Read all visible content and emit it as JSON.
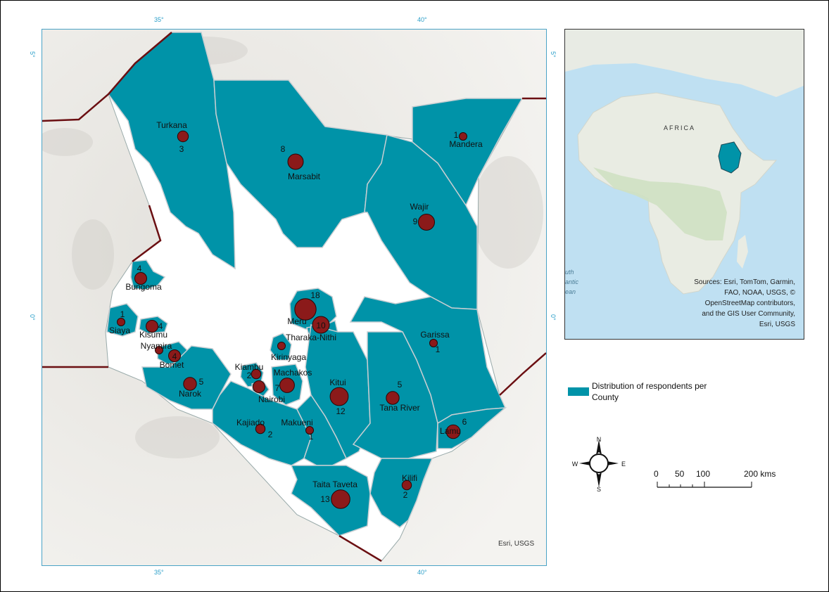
{
  "axis_ticks": {
    "top": [
      "35°",
      "40°"
    ],
    "bottom": [
      "35°",
      "40°"
    ],
    "left": [
      "5°",
      "0°"
    ],
    "right": [
      "5°",
      "0°"
    ]
  },
  "map_credit": "Esri, USGS",
  "colors": {
    "county_fill": "#0093a8",
    "border": "#6b0f12",
    "marker": "#8b1a1a"
  },
  "counties": [
    {
      "name": "Turkana",
      "count": "3",
      "value": 3
    },
    {
      "name": "Marsabit",
      "count": "8",
      "value": 8
    },
    {
      "name": "Mandera",
      "count": "1",
      "value": 1
    },
    {
      "name": "Wajir",
      "count": "9",
      "value": 9
    },
    {
      "name": "Bungoma",
      "count": "4",
      "value": 4
    },
    {
      "name": "Siaya",
      "count": "1",
      "value": 1
    },
    {
      "name": "Kisumu",
      "count": "4",
      "value": 4
    },
    {
      "name": "Nyamira",
      "count": "",
      "value": 1
    },
    {
      "name": "Bomet",
      "count": "4",
      "value": 4
    },
    {
      "name": "Meru",
      "count": "18",
      "value": 18
    },
    {
      "name": "Tharaka-Nithi",
      "count": "10",
      "value": 10
    },
    {
      "name": "Kirinyaga",
      "count": "",
      "value": 1
    },
    {
      "name": "Garissa",
      "count": "1",
      "value": 1
    },
    {
      "name": "Kiambu",
      "count": "2",
      "value": 2
    },
    {
      "name": "Machakos",
      "count": "7",
      "value": 7
    },
    {
      "name": "Nairobi",
      "count": "",
      "value": 4
    },
    {
      "name": "Narok",
      "count": "5",
      "value": 5
    },
    {
      "name": "Kitui",
      "count": "12",
      "value": 12
    },
    {
      "name": "Tana River",
      "count": "5",
      "value": 5
    },
    {
      "name": "Kajiado",
      "count": "2",
      "value": 2
    },
    {
      "name": "Makueni",
      "count": "1",
      "value": 1
    },
    {
      "name": "Lamu",
      "count": "6",
      "value": 6
    },
    {
      "name": "Taita Taveta",
      "count": "13",
      "value": 13
    },
    {
      "name": "Kilifi",
      "count": "2",
      "value": 2
    }
  ],
  "inset": {
    "label": "AFRICA",
    "ocean_label": [
      "uth",
      "antic",
      "ean"
    ],
    "sources": [
      "Sources: Esri, TomTom, Garmin,",
      "FAO, NOAA, USGS, ©",
      "OpenStreetMap contributors,",
      "and the GIS User Community,",
      "Esri, USGS"
    ]
  },
  "legend": {
    "label": "Distribution of respondents per County",
    "swatch_color": "#0093a8"
  },
  "compass": {
    "n": "N",
    "s": "S",
    "e": "E",
    "w": "W"
  },
  "scalebar": {
    "labels": [
      "0",
      "50",
      "100",
      "200 kms"
    ]
  }
}
